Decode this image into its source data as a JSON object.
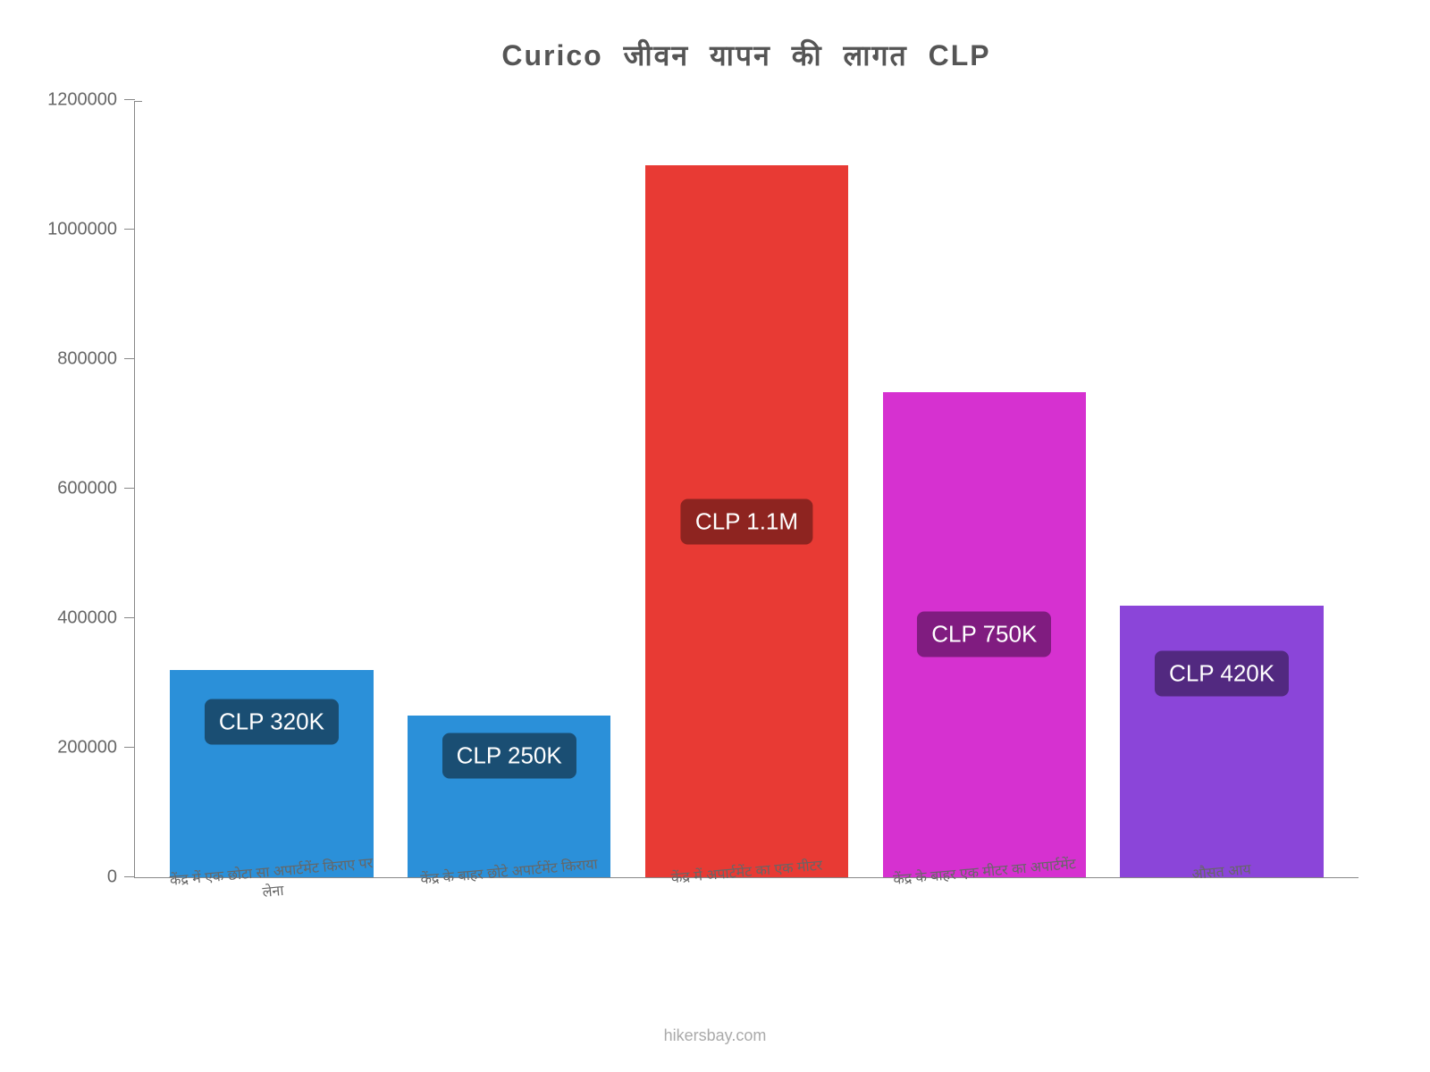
{
  "chart": {
    "type": "bar",
    "title": "Curico जीवन  यापन  की  लागत  CLP",
    "title_fontsize": 32,
    "title_color": "#555555",
    "background_color": "#ffffff",
    "ylim": [
      0,
      1200000
    ],
    "ytick_step": 200000,
    "y_axis_color": "#666666",
    "x_axis_color": "#666666",
    "border_color": "#888888",
    "yticks": [
      {
        "value": 0,
        "label": "0"
      },
      {
        "value": 200000,
        "label": "200000"
      },
      {
        "value": 400000,
        "label": "400000"
      },
      {
        "value": 600000,
        "label": "600000"
      },
      {
        "value": 800000,
        "label": "800000"
      },
      {
        "value": 1000000,
        "label": "1000000"
      },
      {
        "value": 1200000,
        "label": "1200000"
      }
    ],
    "bars": [
      {
        "category": "केंद्र में एक छोटा सा अपार्टमेंट किराए पर लेना",
        "value": 320000,
        "bar_color": "#2b90d9",
        "label_text": "CLP 320K",
        "label_bg": "#1a4e73",
        "label_position": "low"
      },
      {
        "category": "केंद्र के बाहर छोटे अपार्टमेंट किराया",
        "value": 250000,
        "bar_color": "#2b90d9",
        "label_text": "CLP 250K",
        "label_bg": "#1a4e73",
        "label_position": "low"
      },
      {
        "category": "केंद्र में अपार्टमेंट का एक मीटर",
        "value": 1100000,
        "bar_color": "#e83a34",
        "label_text": "CLP 1.1M",
        "label_bg": "#8e2420",
        "label_position": "center"
      },
      {
        "category": "केंद्र के बाहर एक मीटर का अपार्टमेंट",
        "value": 750000,
        "bar_color": "#d631d0",
        "label_text": "CLP 750K",
        "label_bg": "#801c80",
        "label_position": "center"
      },
      {
        "category": "औसत आय",
        "value": 420000,
        "bar_color": "#8b45d9",
        "label_text": "CLP 420K",
        "label_bg": "#522980",
        "label_position": "low"
      }
    ],
    "attribution": "hikersbay.com",
    "attribution_color": "#aaaaaa",
    "x_label_fontsize": 16,
    "y_label_fontsize": 20,
    "bar_label_fontsize": 26
  }
}
